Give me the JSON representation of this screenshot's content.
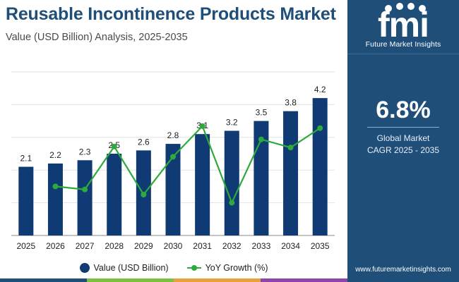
{
  "header": {
    "title": "Reusable Incontinence Products Market",
    "subtitle": "Value (USD Billion) Analysis, 2025-2035"
  },
  "chart_data": {
    "type": "bar+line",
    "categories": [
      "2025",
      "2026",
      "2027",
      "2028",
      "2029",
      "2030",
      "2031",
      "2032",
      "2033",
      "2034",
      "2035"
    ],
    "series": [
      {
        "name": "Value (USD Billion)",
        "type": "bar",
        "color": "#0f3a73",
        "values": [
          2.1,
          2.2,
          2.3,
          2.5,
          2.6,
          2.8,
          3.1,
          3.2,
          3.5,
          3.8,
          4.2
        ],
        "labels": [
          "2.1",
          "2.2",
          "2.3",
          "2.5",
          "2.6",
          "2.8",
          "3.1",
          "3.2",
          "3.5",
          "3.8",
          "4.2"
        ]
      },
      {
        "name": "YoY Growth (%)",
        "type": "line",
        "color": "#2eaa3c",
        "axis": "secondary",
        "values": [
          null,
          4.8,
          4.5,
          8.7,
          4.0,
          7.7,
          10.7,
          3.2,
          9.4,
          8.6,
          10.5
        ]
      }
    ],
    "ylim": [
      0,
      5.0
    ],
    "y2lim": [
      0,
      16
    ],
    "grid": true,
    "legend": "bottom-center"
  },
  "legend": {
    "bar_label": "Value (USD Billion)",
    "line_label": "YoY Growth (%)"
  },
  "sidebar": {
    "logo_text": "fmi",
    "logo_tagline": "Future Market Insights",
    "cagr_value": "6.8%",
    "cagr_label_line1": "Global Market",
    "cagr_label_line2": "CAGR 2025 - 2035",
    "url": "www.futuremarketinsights.com"
  },
  "colors": {
    "brand": "#1f4e79",
    "bar": "#0f3a73",
    "line": "#2eaa3c",
    "footer_strip": [
      "#1f4e79",
      "#7cc242",
      "#e9a23b",
      "#8e44ad"
    ]
  }
}
